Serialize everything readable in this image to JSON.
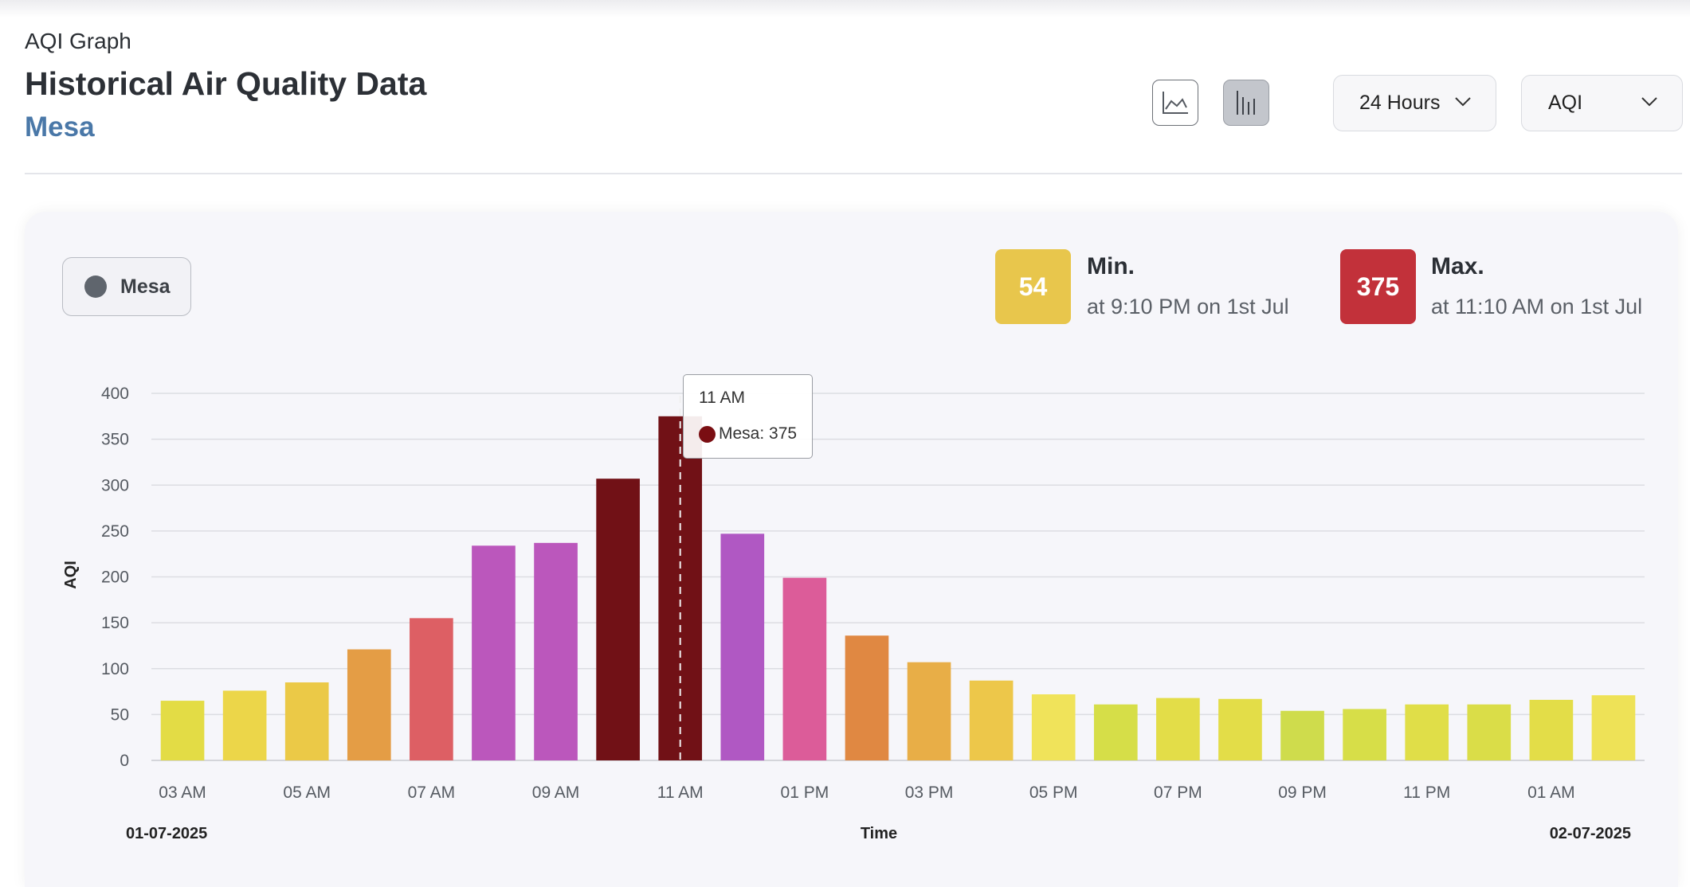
{
  "header": {
    "kicker": "AQI Graph",
    "title": "Historical Air Quality Data",
    "location": "Mesa"
  },
  "toolbar": {
    "chart_types": [
      {
        "name": "line-chart",
        "icon": "line-chart-icon",
        "active": false
      },
      {
        "name": "bar-chart",
        "icon": "bar-chart-icon",
        "active": true
      }
    ],
    "range_select": {
      "value": "24 Hours",
      "icon": "chevron-down-icon"
    },
    "metric_select": {
      "value": "AQI",
      "icon": "chevron-down-icon"
    }
  },
  "legend": {
    "label": "Mesa",
    "color": "#5f656d"
  },
  "stats": {
    "min": {
      "label": "Min.",
      "value": "54",
      "detail": "at 9:10 PM on 1st Jul",
      "color": "#e8c64c"
    },
    "max": {
      "label": "Max.",
      "value": "375",
      "detail": "at 11:10 AM on 1st Jul",
      "color": "#c2313a"
    }
  },
  "tooltip": {
    "title": "11 AM",
    "text": "Mesa: 375",
    "color": "#7a0e12"
  },
  "chart_data": {
    "type": "bar",
    "xlabel": "Time",
    "ylabel": "AQI",
    "ylim": [
      0,
      400
    ],
    "yticks": [
      0,
      50,
      100,
      150,
      200,
      250,
      300,
      350,
      400
    ],
    "grid": true,
    "categories": [
      "03 AM",
      "04 AM",
      "05 AM",
      "06 AM",
      "07 AM",
      "08 AM",
      "09 AM",
      "10 AM",
      "11 AM",
      "12 PM",
      "01 PM",
      "02 PM",
      "03 PM",
      "04 PM",
      "05 PM",
      "06 PM",
      "07 PM",
      "08 PM",
      "09 PM",
      "10 PM",
      "11 PM",
      "12 AM",
      "01 AM",
      "02 AM"
    ],
    "tick_labels": [
      "03 AM",
      "",
      "05 AM",
      "",
      "07 AM",
      "",
      "09 AM",
      "",
      "11 AM",
      "",
      "01 PM",
      "",
      "03 PM",
      "",
      "05 PM",
      "",
      "07 PM",
      "",
      "09 PM",
      "",
      "11 PM",
      "",
      "01 AM",
      ""
    ],
    "series": [
      {
        "name": "Mesa",
        "values": [
          65,
          76,
          85,
          121,
          155,
          234,
          237,
          307,
          375,
          247,
          199,
          136,
          107,
          87,
          72,
          61,
          68,
          67,
          54,
          56,
          61,
          61,
          66,
          71
        ],
        "colors": [
          "#e3dc45",
          "#ecd649",
          "#ebc947",
          "#e49d45",
          "#dd5f64",
          "#bb57bc",
          "#bb57bc",
          "#711116",
          "#711116",
          "#b058c3",
          "#dc5c99",
          "#e08842",
          "#e8ae47",
          "#edc74a",
          "#f0e35a",
          "#d6de48",
          "#e3dd48",
          "#e3dd48",
          "#cfdc4c",
          "#d7de48",
          "#e0de48",
          "#dadd48",
          "#e3dd48",
          "#eee257"
        ]
      }
    ],
    "start_date": "01-07-2025",
    "end_date": "02-07-2025"
  }
}
